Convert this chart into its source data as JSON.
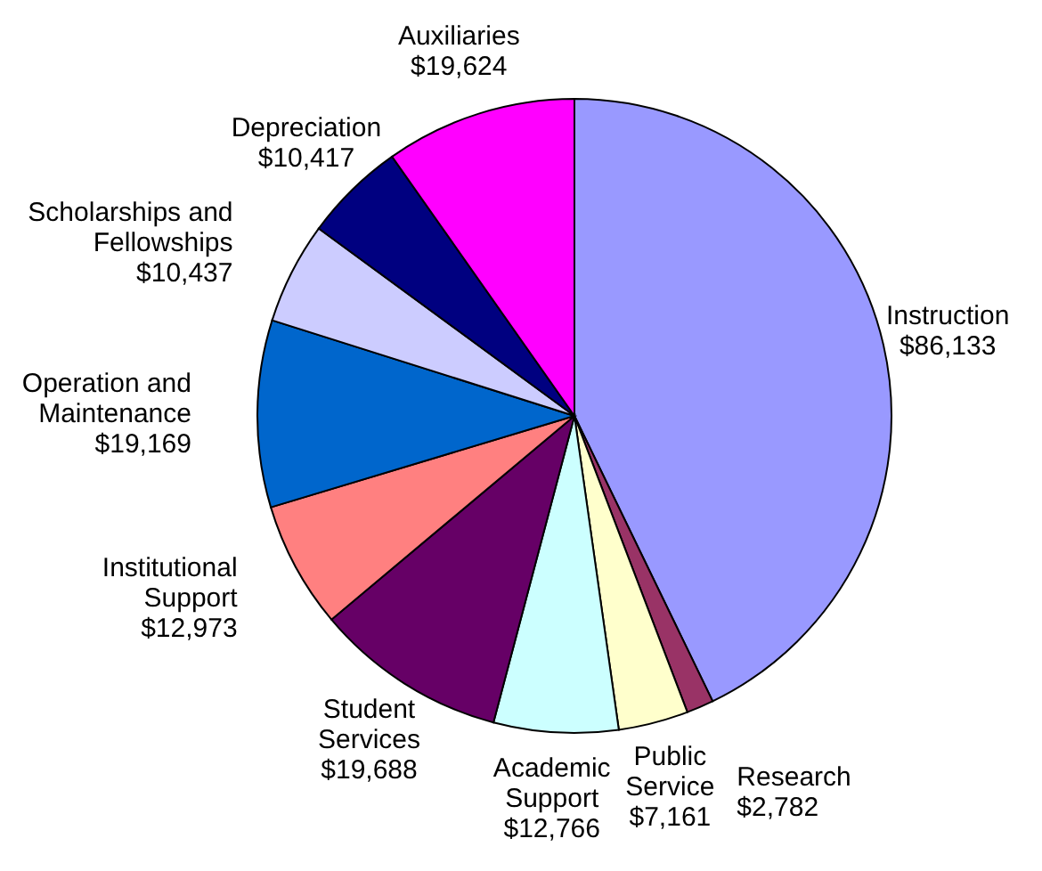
{
  "chart_data": {
    "type": "pie",
    "categories": [
      "Instruction",
      "Research",
      "Public Service",
      "Academic Support",
      "Student Services",
      "Institutional Support",
      "Operation and Maintenance",
      "Scholarships and Fellowships",
      "Depreciation",
      "Auxiliaries"
    ],
    "values": [
      86133,
      2782,
      7161,
      12766,
      19688,
      12973,
      19169,
      10437,
      10417,
      19624
    ],
    "colors": [
      "#9999ff",
      "#993366",
      "#ffffcc",
      "#ccffff",
      "#660066",
      "#ff8080",
      "#0066cc",
      "#ccccff",
      "#000080",
      "#ff00ff"
    ],
    "value_labels": [
      "$86,133",
      "$2,782",
      "$7,161",
      "$12,766",
      "$19,688",
      "$12,973",
      "$19,169",
      "$10,437",
      "$10,417",
      "$19,624"
    ]
  }
}
